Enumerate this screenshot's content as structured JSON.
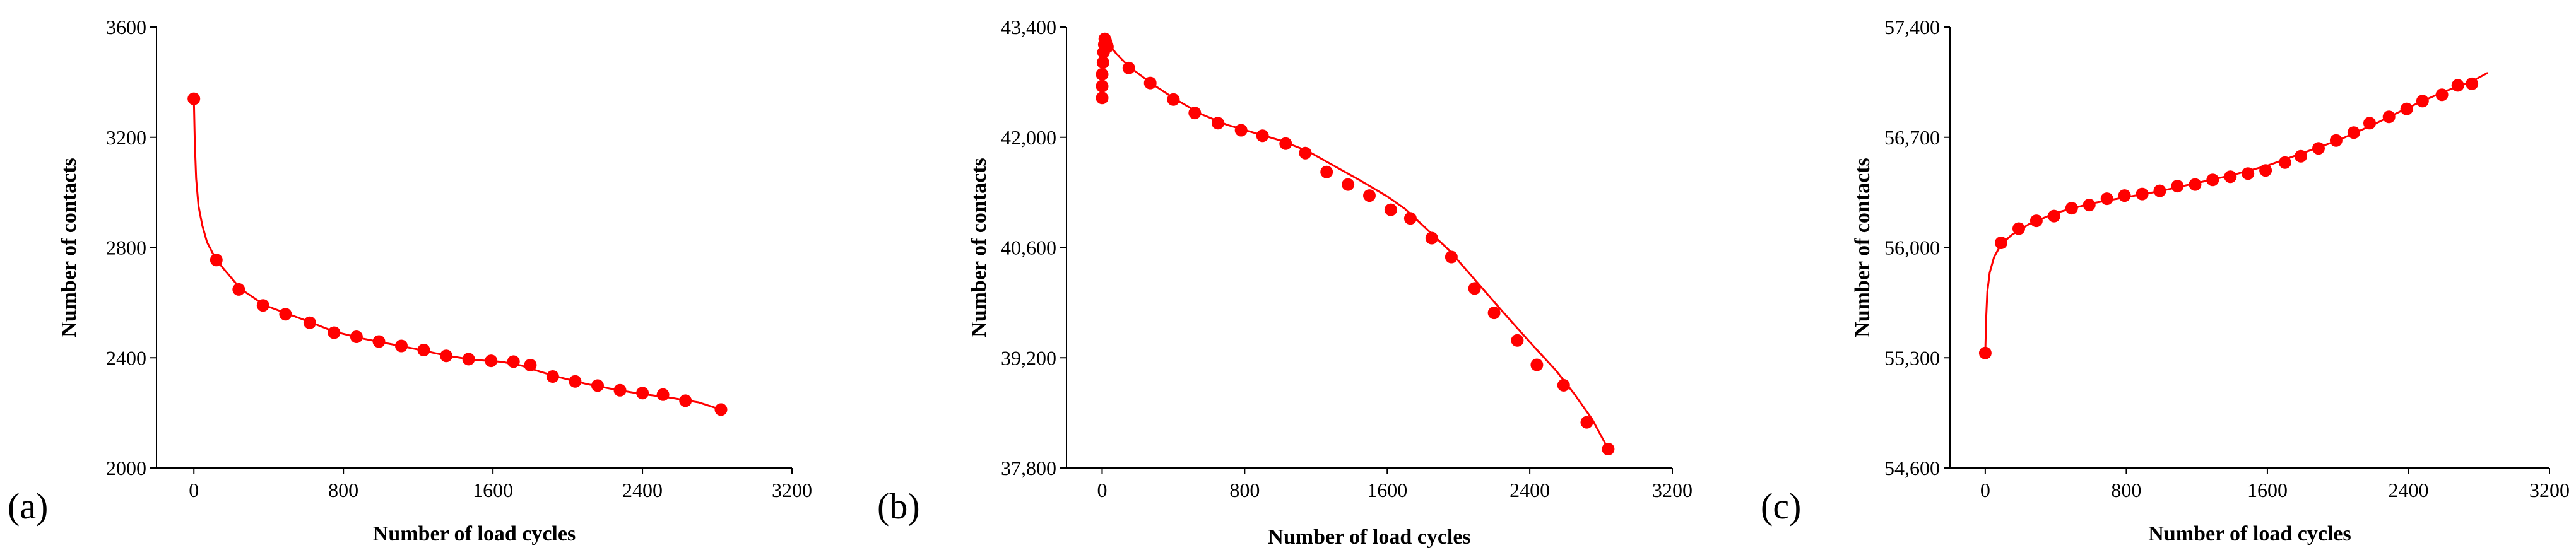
{
  "chart_data": [
    {
      "type": "line",
      "panel_label": "(a)",
      "xlabel": "Number of load cycles",
      "ylabel": "Number of contacts",
      "xlim": [
        -200,
        3200
      ],
      "ylim": [
        2000,
        3600
      ],
      "x_ticks": [
        0,
        800,
        1600,
        2400,
        3200
      ],
      "x_tick_labels": [
        "0",
        "800",
        "1600",
        "2400",
        "3200"
      ],
      "y_ticks": [
        2000,
        2400,
        2800,
        3200,
        3600
      ],
      "y_tick_labels": [
        "2000",
        "2400",
        "2800",
        "3200",
        "3600"
      ],
      "grid": false,
      "series": [
        {
          "name": "contacts",
          "color": "#ff0000",
          "curve": [
            [
              0,
              3340
            ],
            [
              5,
              3180
            ],
            [
              12,
              3050
            ],
            [
              25,
              2950
            ],
            [
              45,
              2880
            ],
            [
              70,
              2820
            ],
            [
              100,
              2780
            ],
            [
              150,
              2730
            ],
            [
              250,
              2650
            ],
            [
              380,
              2590
            ],
            [
              500,
              2560
            ],
            [
              620,
              2530
            ],
            [
              750,
              2495
            ],
            [
              900,
              2470
            ],
            [
              1050,
              2450
            ],
            [
              1200,
              2430
            ],
            [
              1350,
              2408
            ],
            [
              1500,
              2392
            ],
            [
              1650,
              2385
            ],
            [
              1750,
              2372
            ],
            [
              1850,
              2350
            ],
            [
              1950,
              2330
            ],
            [
              2100,
              2305
            ],
            [
              2250,
              2285
            ],
            [
              2400,
              2268
            ],
            [
              2550,
              2255
            ],
            [
              2700,
              2238
            ],
            [
              2820,
              2212
            ]
          ],
          "markers": [
            [
              0,
              3340
            ],
            [
              120,
              2755
            ],
            [
              240,
              2648
            ],
            [
              370,
              2590
            ],
            [
              490,
              2558
            ],
            [
              620,
              2527
            ],
            [
              750,
              2491
            ],
            [
              870,
              2476
            ],
            [
              990,
              2459
            ],
            [
              1110,
              2443
            ],
            [
              1230,
              2428
            ],
            [
              1350,
              2407
            ],
            [
              1470,
              2395
            ],
            [
              1590,
              2389
            ],
            [
              1710,
              2386
            ],
            [
              1800,
              2373
            ],
            [
              1920,
              2332
            ],
            [
              2040,
              2314
            ],
            [
              2160,
              2299
            ],
            [
              2280,
              2282
            ],
            [
              2400,
              2272
            ],
            [
              2510,
              2266
            ],
            [
              2630,
              2244
            ],
            [
              2820,
              2212
            ]
          ]
        }
      ]
    },
    {
      "type": "line",
      "panel_label": "(b)",
      "xlabel": "Number of load cycles",
      "ylabel": "Number of contacts",
      "xlim": [
        -200,
        3200
      ],
      "ylim": [
        37800,
        43400
      ],
      "x_ticks": [
        0,
        800,
        1600,
        2400,
        3200
      ],
      "x_tick_labels": [
        "0",
        "800",
        "1600",
        "2400",
        "3200"
      ],
      "y_ticks": [
        37800,
        39200,
        40600,
        42000,
        43400
      ],
      "y_tick_labels": [
        "37,800",
        "39,200",
        "40,600",
        "42,000",
        "43,400"
      ],
      "grid": false,
      "series": [
        {
          "name": "contacts",
          "color": "#ff0000",
          "curve": [
            [
              0,
              42450
            ],
            [
              1,
              42600
            ],
            [
              2,
              42750
            ],
            [
              3,
              42900
            ],
            [
              5,
              43050
            ],
            [
              8,
              43180
            ],
            [
              12,
              43260
            ],
            [
              20,
              43240
            ],
            [
              40,
              43180
            ],
            [
              80,
              43060
            ],
            [
              150,
              42900
            ],
            [
              280,
              42680
            ],
            [
              400,
              42500
            ],
            [
              550,
              42300
            ],
            [
              700,
              42160
            ],
            [
              850,
              42060
            ],
            [
              1000,
              41960
            ],
            [
              1150,
              41830
            ],
            [
              1300,
              41640
            ],
            [
              1450,
              41450
            ],
            [
              1600,
              41250
            ],
            [
              1700,
              41090
            ],
            [
              1800,
              40880
            ],
            [
              1950,
              40560
            ],
            [
              2100,
              40170
            ],
            [
              2250,
              39780
            ],
            [
              2400,
              39400
            ],
            [
              2550,
              39030
            ],
            [
              2650,
              38740
            ],
            [
              2750,
              38420
            ],
            [
              2840,
              38040
            ]
          ],
          "markers": [
            [
              0,
              42500
            ],
            [
              0,
              42650
            ],
            [
              0,
              42800
            ],
            [
              5,
              42950
            ],
            [
              8,
              43080
            ],
            [
              12,
              43180
            ],
            [
              15,
              43250
            ],
            [
              20,
              43220
            ],
            [
              30,
              43150
            ],
            [
              150,
              42880
            ],
            [
              270,
              42690
            ],
            [
              400,
              42480
            ],
            [
              520,
              42310
            ],
            [
              650,
              42180
            ],
            [
              780,
              42090
            ],
            [
              900,
              42020
            ],
            [
              1030,
              41920
            ],
            [
              1140,
              41800
            ],
            [
              1260,
              41560
            ],
            [
              1380,
              41400
            ],
            [
              1500,
              41260
            ],
            [
              1620,
              41080
            ],
            [
              1730,
              40970
            ],
            [
              1850,
              40720
            ],
            [
              1960,
              40480
            ],
            [
              2090,
              40080
            ],
            [
              2200,
              39770
            ],
            [
              2330,
              39420
            ],
            [
              2440,
              39110
            ],
            [
              2590,
              38850
            ],
            [
              2720,
              38380
            ],
            [
              2840,
              38040
            ]
          ]
        }
      ]
    },
    {
      "type": "line",
      "panel_label": "(c)",
      "xlabel": "Number of load cycles",
      "ylabel": "Number of contacts",
      "xlim": [
        -200,
        3200
      ],
      "ylim": [
        54600,
        57400
      ],
      "x_ticks": [
        0,
        800,
        1600,
        2400,
        3200
      ],
      "x_tick_labels": [
        "0",
        "800",
        "1600",
        "2400",
        "3200"
      ],
      "y_ticks": [
        54600,
        55300,
        56000,
        56700,
        57400
      ],
      "y_tick_labels": [
        "54,600",
        "55,300",
        "56,000",
        "56,700",
        "57,400"
      ],
      "grid": false,
      "series": [
        {
          "name": "contacts",
          "color": "#ff0000",
          "curve": [
            [
              0,
              55330
            ],
            [
              5,
              55550
            ],
            [
              12,
              55720
            ],
            [
              25,
              55840
            ],
            [
              50,
              55940
            ],
            [
              90,
              56020
            ],
            [
              150,
              56080
            ],
            [
              250,
              56150
            ],
            [
              400,
              56220
            ],
            [
              600,
              56280
            ],
            [
              800,
              56320
            ],
            [
              1000,
              56360
            ],
            [
              1200,
              56410
            ],
            [
              1400,
              56460
            ],
            [
              1600,
              56520
            ],
            [
              1800,
              56600
            ],
            [
              2000,
              56680
            ],
            [
              2200,
              56780
            ],
            [
              2400,
              56890
            ],
            [
              2600,
              56990
            ],
            [
              2750,
              57050
            ],
            [
              2850,
              57110
            ]
          ],
          "markers": [
            [
              0,
              55330
            ],
            [
              90,
              56030
            ],
            [
              190,
              56120
            ],
            [
              290,
              56170
            ],
            [
              390,
              56200
            ],
            [
              490,
              56250
            ],
            [
              590,
              56270
            ],
            [
              690,
              56310
            ],
            [
              790,
              56330
            ],
            [
              890,
              56340
            ],
            [
              990,
              56360
            ],
            [
              1090,
              56390
            ],
            [
              1190,
              56400
            ],
            [
              1290,
              56430
            ],
            [
              1390,
              56450
            ],
            [
              1490,
              56470
            ],
            [
              1590,
              56490
            ],
            [
              1700,
              56540
            ],
            [
              1790,
              56580
            ],
            [
              1890,
              56630
            ],
            [
              1990,
              56680
            ],
            [
              2090,
              56730
            ],
            [
              2180,
              56790
            ],
            [
              2290,
              56830
            ],
            [
              2390,
              56880
            ],
            [
              2480,
              56930
            ],
            [
              2590,
              56970
            ],
            [
              2680,
              57030
            ],
            [
              2760,
              57040
            ]
          ]
        }
      ]
    }
  ]
}
